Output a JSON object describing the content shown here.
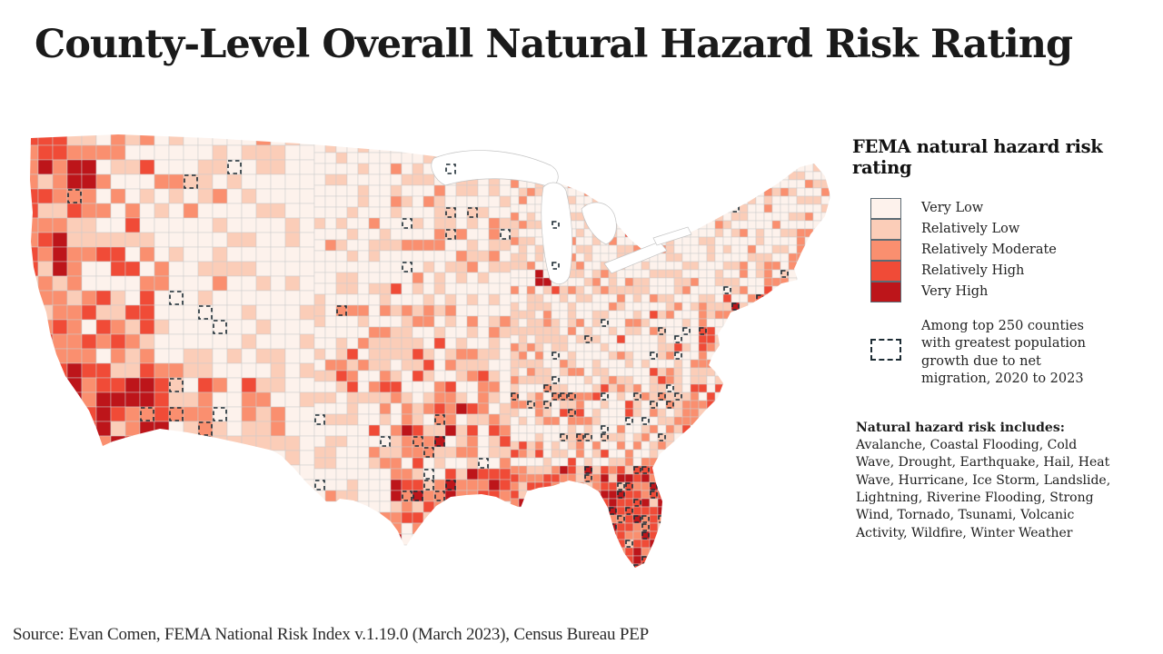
{
  "title": "County-Level Overall Natural Hazard Risk Rating",
  "legend": {
    "title": "FEMA natural hazard risk rating",
    "categories": [
      {
        "label": "Very Low",
        "color": "#fdf2ec"
      },
      {
        "label": "Relatively Low",
        "color": "#fbcdb8"
      },
      {
        "label": "Relatively Moderate",
        "color": "#fa8f6f"
      },
      {
        "label": "Relatively High",
        "color": "#f04b37"
      },
      {
        "label": "Very High",
        "color": "#bd151a"
      }
    ],
    "migration_note": "Among top 250 counties with greatest population growth due to net migration, 2020 to 2023"
  },
  "hazard_info": {
    "heading": "Natural hazard risk includes:",
    "body": "Avalanche, Coastal Flooding, Cold Wave, Drought, Earthquake, Hail, Heat Wave, Hurricane, Ice Storm, Landslide, Lightning, Riverine Flooding, Strong Wind, Tornado, Tsunami, Volcanic Activity, Wildfire, Winter Weather"
  },
  "source": "Source: Evan Comen, FEMA National Risk Index v.1.19.0 (March 2023), Census Bureau PEP",
  "map": {
    "type": "choropleth",
    "region": "Contiguous United States, county level",
    "classes": [
      "Very Low",
      "Relatively Low",
      "Relatively Moderate",
      "Relatively High",
      "Very High"
    ],
    "county_border_color": "#cbcbcb",
    "water_color": "#ffffff",
    "migration_outline_color": "#1d2c34"
  }
}
